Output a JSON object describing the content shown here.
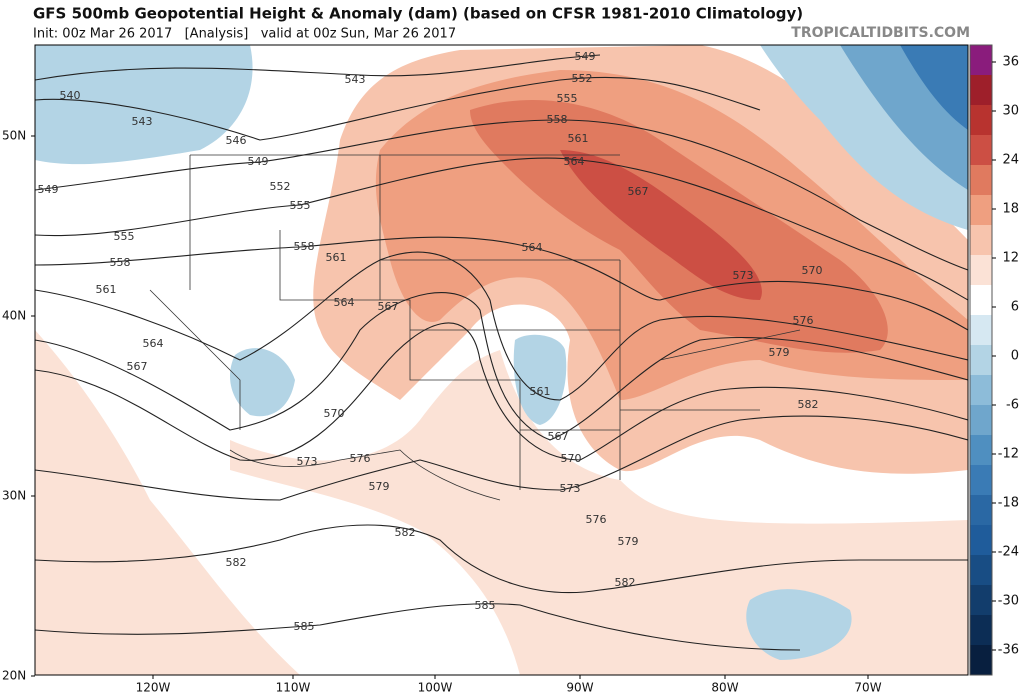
{
  "header": {
    "title": "GFS 500mb Geopotential Height & Anomaly (dam) (based on CFSR 1981-2010 Climatology)",
    "subtitle": "Init: 00z Mar 26 2017   [Analysis]   valid at 00z Sun, Mar 26 2017",
    "source": "TROPICALTIDBITS.COM"
  },
  "map": {
    "latitude_labels": [
      "50N",
      "40N",
      "30N",
      "20N"
    ],
    "longitude_labels": [
      "120W",
      "110W",
      "100W",
      "90W",
      "80W",
      "70W"
    ],
    "contour_labels": [
      543,
      549,
      552,
      555,
      558,
      561,
      564,
      567,
      540,
      543,
      546,
      549,
      552,
      555,
      549,
      555,
      558,
      561,
      564,
      567,
      558,
      561,
      564,
      567,
      564,
      570,
      573,
      576,
      579,
      582,
      582,
      585,
      585,
      561,
      567,
      570,
      573,
      576,
      579,
      582,
      582,
      573,
      570,
      576,
      579
    ]
  },
  "colorbar": {
    "ticks": [
      36,
      30,
      24,
      18,
      12,
      6,
      0,
      -6,
      -12,
      -18,
      -24,
      -30,
      -36
    ],
    "colors": [
      "#8a1c7c",
      "#9e1f2a",
      "#b8332f",
      "#cc4f44",
      "#e07a5f",
      "#ef9f80",
      "#f7c4ad",
      "#fbe2d6",
      "#ffffff",
      "#d6e8f2",
      "#b3d4e5",
      "#8dbcd9",
      "#6fa6cc",
      "#4f8fc0",
      "#3a7bb5",
      "#2a68a4",
      "#1f5c9b",
      "#184d84",
      "#123d6c",
      "#0c2d55",
      "#081f3f"
    ]
  }
}
